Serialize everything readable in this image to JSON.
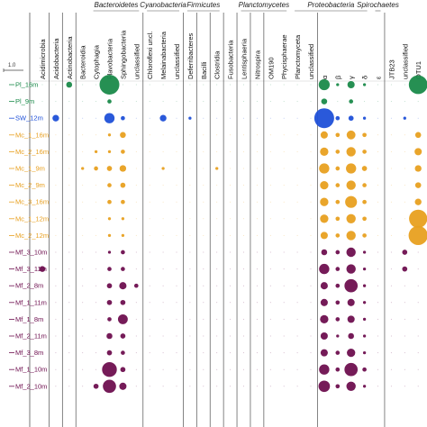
{
  "chart_data": {
    "type": "bubble-matrix",
    "scale_label": "1.0",
    "column_groups": [
      {
        "name": "Bacteroidetes",
        "from": 4,
        "to": 7
      },
      {
        "name": "Cyanobacteria",
        "from": 8,
        "to": 10
      },
      {
        "name": "Firmicutes",
        "from": 11,
        "to": 13
      },
      {
        "name": "Planctomycetes",
        "from": 15,
        "to": 18
      },
      {
        "name": "Proteobacteria",
        "from": 19,
        "to": 24
      },
      {
        "name": "Spirochaetes",
        "from": 25,
        "to": 25
      }
    ],
    "columns": [
      "Acidimicrobia",
      "Acidobacteria",
      "Actinobacteria",
      "Bacteroidia",
      "Cytophagia",
      "Flavobacteria",
      "Sphingobacteria",
      "unclassified",
      "Chloroflexi uncl.",
      "Melainabacteria",
      "unclassified",
      "Deferribacteres",
      "Bacilli",
      "Clostridia",
      "Fusobacteria",
      "Lentisphaeria",
      "Nitrospira",
      "OM190",
      "Phycisphaerae",
      "Planctomyceta",
      "unclassified",
      "α",
      "β",
      "γ",
      "δ",
      "ε",
      "JTB23",
      "unclassified",
      "OTU1"
    ],
    "rows": [
      {
        "name": "Pl_16m",
        "group": "Pl"
      },
      {
        "name": "Pl_9m",
        "group": "Pl"
      },
      {
        "name": "SW_12m",
        "group": "SW"
      },
      {
        "name": "Mc_1_16m",
        "group": "Mc"
      },
      {
        "name": "Mc_2_16m",
        "group": "Mc"
      },
      {
        "name": "Mc_1_9m",
        "group": "Mc"
      },
      {
        "name": "Mc_2_9m",
        "group": "Mc"
      },
      {
        "name": "Mc_3_16m",
        "group": "Mc"
      },
      {
        "name": "Mc_1_12m",
        "group": "Mc"
      },
      {
        "name": "Mc_2_12m",
        "group": "Mc"
      },
      {
        "name": "Mf_3_10m",
        "group": "Mf"
      },
      {
        "name": "Mf_3_11m",
        "group": "Mf"
      },
      {
        "name": "Mf_2_8m",
        "group": "Mf"
      },
      {
        "name": "Mf_1_11m",
        "group": "Mf"
      },
      {
        "name": "Mf_1_8m",
        "group": "Mf"
      },
      {
        "name": "Mf_2_11m",
        "group": "Mf"
      },
      {
        "name": "Mf_3_8m",
        "group": "Mf"
      },
      {
        "name": "Mf_1_10m",
        "group": "Mf"
      },
      {
        "name": "Mf_2_10m",
        "group": "Mf"
      }
    ],
    "group_colors": {
      "Pl": "#1a8a4a",
      "SW": "#1f50d8",
      "Mc": "#e8a020",
      "Mf": "#6e0f4f"
    },
    "separators_after_columns": [
      0,
      1,
      2,
      7,
      10,
      11,
      12,
      13,
      14,
      15,
      16,
      20,
      25
    ],
    "values": [
      [
        0,
        0,
        0.04,
        0,
        0,
        0.45,
        0,
        0,
        0,
        0,
        0,
        0,
        0,
        0,
        0,
        0,
        0,
        0,
        0,
        0,
        0,
        0.14,
        0.01,
        0.06,
        0.01,
        0,
        0,
        0,
        0.4
      ],
      [
        0,
        0,
        0,
        0,
        0,
        0.02,
        0,
        0,
        0,
        0,
        0,
        0,
        0,
        0,
        0,
        0,
        0,
        0,
        0,
        0,
        0,
        0.04,
        0,
        0.02,
        0,
        0,
        0,
        0,
        0
      ],
      [
        0,
        0.05,
        0,
        0,
        0,
        0.12,
        0.02,
        0,
        0,
        0.05,
        0,
        0.01,
        0,
        0,
        0,
        0,
        0,
        0,
        0,
        0,
        0,
        0.45,
        0.02,
        0.03,
        0.01,
        0,
        0,
        0.01,
        0
      ],
      [
        0,
        0,
        0,
        0,
        0,
        0.01,
        0.04,
        0,
        0,
        0,
        0,
        0,
        0,
        0,
        0,
        0,
        0,
        0,
        0,
        0,
        0,
        0.06,
        0.02,
        0.09,
        0.02,
        0,
        0,
        0,
        0.04
      ],
      [
        0,
        0,
        0,
        0,
        0.01,
        0.01,
        0.02,
        0,
        0,
        0,
        0,
        0,
        0,
        0,
        0,
        0,
        0,
        0,
        0,
        0,
        0,
        0.08,
        0.02,
        0.1,
        0.02,
        0,
        0,
        0,
        0.06
      ],
      [
        0,
        0,
        0,
        0.01,
        0.02,
        0.03,
        0.05,
        0,
        0,
        0.01,
        0,
        0,
        0,
        0.01,
        0,
        0,
        0,
        0,
        0,
        0,
        0,
        0.12,
        0.02,
        0.12,
        0.03,
        0,
        0,
        0,
        0.05
      ],
      [
        0,
        0,
        0,
        0,
        0,
        0.02,
        0.03,
        0,
        0,
        0,
        0,
        0,
        0,
        0,
        0,
        0,
        0,
        0,
        0,
        0,
        0,
        0.08,
        0.02,
        0.1,
        0.02,
        0,
        0,
        0,
        0.04
      ],
      [
        0,
        0,
        0,
        0,
        0,
        0.02,
        0.02,
        0,
        0,
        0,
        0,
        0,
        0,
        0,
        0,
        0,
        0,
        0,
        0,
        0,
        0,
        0.08,
        0.02,
        0.16,
        0.02,
        0,
        0,
        0,
        0.05
      ],
      [
        0,
        0,
        0,
        0,
        0,
        0.01,
        0.01,
        0,
        0,
        0,
        0,
        0,
        0,
        0,
        0,
        0,
        0,
        0,
        0,
        0,
        0,
        0.08,
        0.02,
        0.1,
        0.02,
        0,
        0,
        0,
        0.38
      ],
      [
        0,
        0,
        0,
        0,
        0,
        0.01,
        0.01,
        0,
        0,
        0,
        0,
        0,
        0,
        0,
        0,
        0,
        0,
        0,
        0,
        0,
        0,
        0.06,
        0.02,
        0.1,
        0.02,
        0,
        0,
        0,
        0.42
      ],
      [
        0,
        0,
        0,
        0,
        0,
        0.01,
        0.02,
        0,
        0,
        0,
        0,
        0,
        0,
        0,
        0,
        0,
        0,
        0,
        0,
        0,
        0,
        0.04,
        0.02,
        0.1,
        0.01,
        0,
        0,
        0.03,
        0
      ],
      [
        0.04,
        0,
        0,
        0,
        0,
        0.02,
        0.02,
        0,
        0,
        0,
        0,
        0,
        0,
        0,
        0,
        0,
        0,
        0,
        0,
        0,
        0,
        0.12,
        0.02,
        0.1,
        0.01,
        0,
        0,
        0.03,
        0
      ],
      [
        0,
        0,
        0,
        0,
        0,
        0.03,
        0.06,
        0.02,
        0,
        0,
        0,
        0,
        0,
        0,
        0,
        0,
        0,
        0,
        0,
        0,
        0,
        0.06,
        0.02,
        0.2,
        0.01,
        0,
        0,
        0,
        0
      ],
      [
        0,
        0,
        0,
        0,
        0,
        0.03,
        0.03,
        0,
        0,
        0,
        0,
        0,
        0,
        0,
        0,
        0,
        0,
        0,
        0,
        0,
        0,
        0.06,
        0.02,
        0.06,
        0.01,
        0,
        0,
        0,
        0
      ],
      [
        0,
        0,
        0,
        0,
        0,
        0.02,
        0.11,
        0,
        0,
        0,
        0,
        0,
        0,
        0,
        0,
        0,
        0,
        0,
        0,
        0,
        0,
        0.08,
        0.02,
        0.06,
        0.01,
        0,
        0,
        0,
        0
      ],
      [
        0,
        0,
        0,
        0,
        0,
        0.04,
        0.03,
        0,
        0,
        0,
        0,
        0,
        0,
        0,
        0,
        0,
        0,
        0,
        0,
        0,
        0,
        0.06,
        0.01,
        0.04,
        0.01,
        0,
        0,
        0,
        0
      ],
      [
        0,
        0,
        0,
        0,
        0,
        0.03,
        0.02,
        0,
        0,
        0,
        0,
        0,
        0,
        0,
        0,
        0,
        0,
        0,
        0,
        0,
        0,
        0.06,
        0.02,
        0.08,
        0.01,
        0,
        0,
        0,
        0
      ],
      [
        0,
        0,
        0,
        0,
        0,
        0.25,
        0.03,
        0,
        0,
        0,
        0,
        0,
        0,
        0,
        0,
        0,
        0,
        0,
        0,
        0,
        0,
        0.12,
        0.02,
        0.2,
        0.02,
        0,
        0,
        0,
        0
      ],
      [
        0,
        0,
        0,
        0,
        0.03,
        0.2,
        0.06,
        0,
        0,
        0,
        0,
        0,
        0,
        0,
        0,
        0,
        0,
        0,
        0,
        0,
        0,
        0.15,
        0.02,
        0.1,
        0.01,
        0,
        0,
        0,
        0
      ]
    ]
  }
}
